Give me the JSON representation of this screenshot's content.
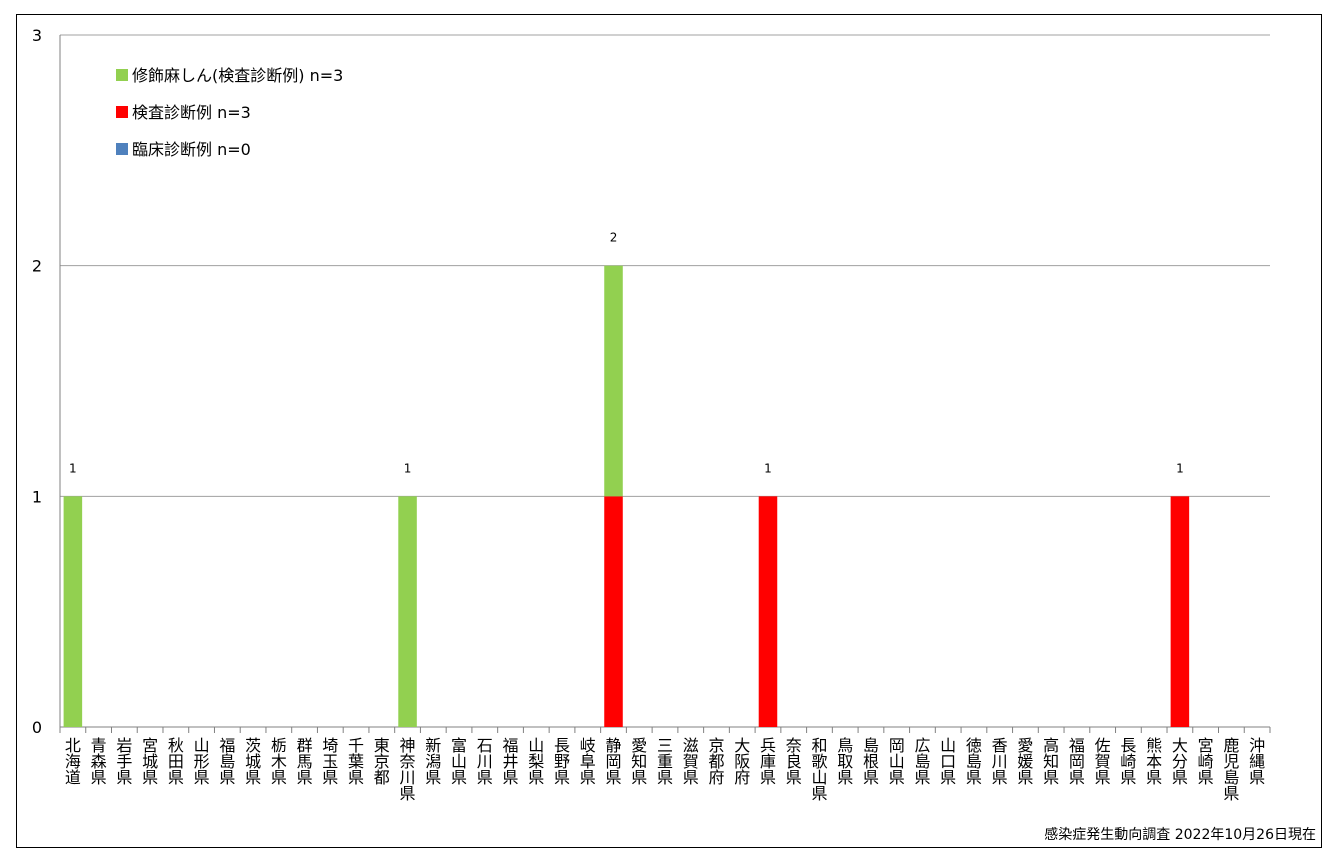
{
  "colors": {
    "rinsho": "#4F81BD",
    "kensa": "#FF0000",
    "shushoku": "#92D050",
    "grid": "#A0A0A0",
    "axis": "#808080"
  },
  "chart_data": {
    "type": "bar",
    "stacked": true,
    "categories": [
      "北海道",
      "青森県",
      "岩手県",
      "宮城県",
      "秋田県",
      "山形県",
      "福島県",
      "茨城県",
      "栃木県",
      "群馬県",
      "埼玉県",
      "千葉県",
      "東京都",
      "神奈川県",
      "新潟県",
      "富山県",
      "石川県",
      "福井県",
      "山梨県",
      "長野県",
      "岐阜県",
      "静岡県",
      "愛知県",
      "三重県",
      "滋賀県",
      "京都府",
      "大阪府",
      "兵庫県",
      "奈良県",
      "和歌山県",
      "鳥取県",
      "島根県",
      "岡山県",
      "広島県",
      "山口県",
      "徳島県",
      "香川県",
      "愛媛県",
      "高知県",
      "福岡県",
      "佐賀県",
      "長崎県",
      "熊本県",
      "大分県",
      "宮崎県",
      "鹿児島県",
      "沖縄県"
    ],
    "series": [
      {
        "name": "臨床診断例 n=0",
        "color": "#4F81BD",
        "values": [
          0,
          0,
          0,
          0,
          0,
          0,
          0,
          0,
          0,
          0,
          0,
          0,
          0,
          0,
          0,
          0,
          0,
          0,
          0,
          0,
          0,
          0,
          0,
          0,
          0,
          0,
          0,
          0,
          0,
          0,
          0,
          0,
          0,
          0,
          0,
          0,
          0,
          0,
          0,
          0,
          0,
          0,
          0,
          0,
          0,
          0,
          0
        ]
      },
      {
        "name": "検査診断例 n=3",
        "color": "#FF0000",
        "values": [
          0,
          0,
          0,
          0,
          0,
          0,
          0,
          0,
          0,
          0,
          0,
          0,
          0,
          0,
          0,
          0,
          0,
          0,
          0,
          0,
          0,
          1,
          0,
          0,
          0,
          0,
          0,
          1,
          0,
          0,
          0,
          0,
          0,
          0,
          0,
          0,
          0,
          0,
          0,
          0,
          0,
          0,
          0,
          1,
          0,
          0,
          0
        ]
      },
      {
        "name": "修飾麻しん(検査診断例) n=3",
        "color": "#92D050",
        "values": [
          1,
          0,
          0,
          0,
          0,
          0,
          0,
          0,
          0,
          0,
          0,
          0,
          0,
          1,
          0,
          0,
          0,
          0,
          0,
          0,
          0,
          1,
          0,
          0,
          0,
          0,
          0,
          0,
          0,
          0,
          0,
          0,
          0,
          0,
          0,
          0,
          0,
          0,
          0,
          0,
          0,
          0,
          0,
          0,
          0,
          0,
          0
        ]
      }
    ],
    "totals_labels": [
      "1",
      "",
      "",
      "",
      "",
      "",
      "",
      "",
      "",
      "",
      "",
      "",
      "",
      "1",
      "",
      "",
      "",
      "",
      "",
      "",
      "",
      "2",
      "",
      "",
      "",
      "",
      "",
      "1",
      "",
      "",
      "",
      "",
      "",
      "",
      "",
      "",
      "",
      "",
      "",
      "",
      "",
      "",
      "",
      "1",
      "",
      "",
      ""
    ],
    "ylim": [
      0,
      3
    ],
    "yticks": [
      "0",
      "1",
      "2",
      "3"
    ],
    "grid": true,
    "legend_position": "top-left",
    "legend_order": [
      "修飾麻しん(検査診断例) n=3",
      "検査診断例 n=3",
      "臨床診断例 n=0"
    ]
  },
  "source_note": "感染症発生動向調査 2022年10月26日現在"
}
